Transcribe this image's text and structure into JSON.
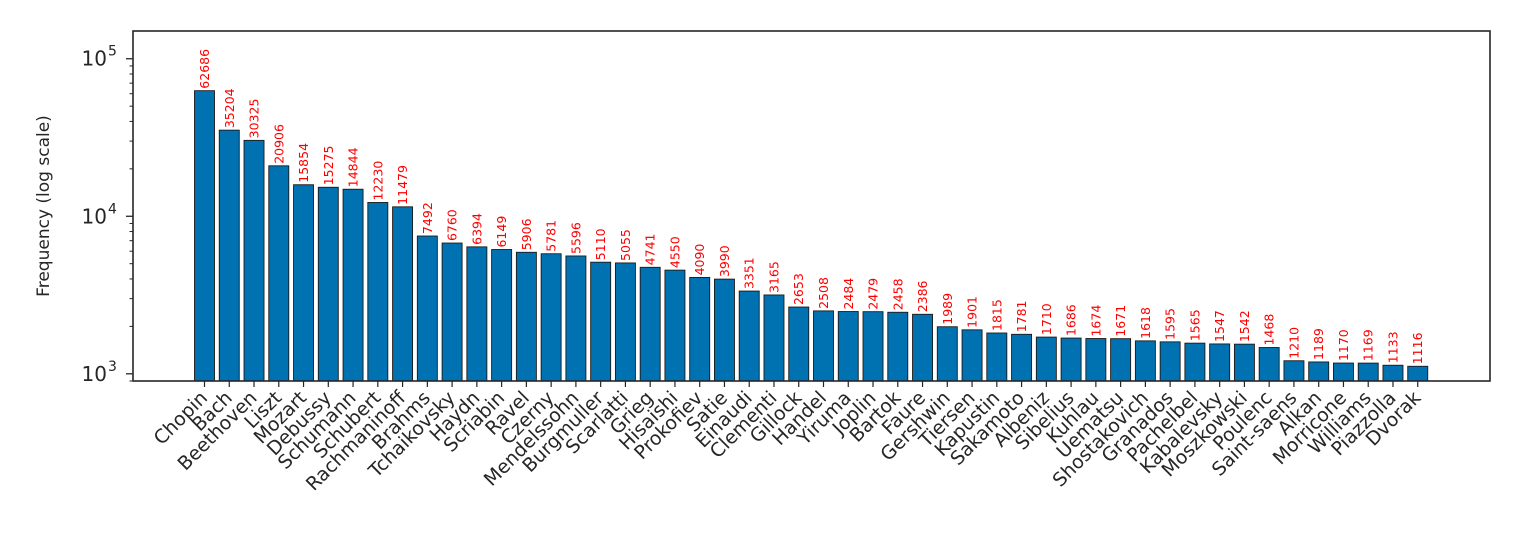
{
  "chart_data": {
    "type": "bar",
    "ylabel": "Frequency (log scale)",
    "yscale": "log",
    "ylim": [
      900,
      150000
    ],
    "yticks": [
      {
        "value": 1000,
        "base": "10",
        "exp": "3"
      },
      {
        "value": 10000,
        "base": "10",
        "exp": "4"
      },
      {
        "value": 100000,
        "base": "10",
        "exp": "5"
      }
    ],
    "bar_color": "#0072b2",
    "value_label_color": "#ff0000",
    "categories": [
      "Chopin",
      "Bach",
      "Beethoven",
      "Liszt",
      "Mozart",
      "Debussy",
      "Schumann",
      "Schubert",
      "Rachmaninoff",
      "Brahms",
      "Tchaikovsky",
      "Haydn",
      "Scriabin",
      "Ravel",
      "Czerny",
      "Mendelssohn",
      "Burgmuller",
      "Scarlatti",
      "Grieg",
      "Hisaishi",
      "Prokofiev",
      "Satie",
      "Einaudi",
      "Clementi",
      "Gillock",
      "Handel",
      "Yiruma",
      "Joplin",
      "Bartok",
      "Faure",
      "Gershwin",
      "Tiersen",
      "Kapustin",
      "Sakamoto",
      "Albeniz",
      "Sibelius",
      "Kuhlau",
      "Uematsu",
      "Shostakovich",
      "Granados",
      "Pachelbel",
      "Kabalevsky",
      "Moszkowski",
      "Poulenc",
      "Saint-saens",
      "Alkan",
      "Morricone",
      "Williams",
      "Piazzolla",
      "Dvorak"
    ],
    "values": [
      62686,
      35204,
      30325,
      20906,
      15854,
      15275,
      14844,
      12230,
      11479,
      7492,
      6760,
      6394,
      6149,
      5906,
      5781,
      5596,
      5110,
      5055,
      4741,
      4550,
      4090,
      3990,
      3351,
      3165,
      2653,
      2508,
      2484,
      2479,
      2458,
      2386,
      1989,
      1901,
      1815,
      1781,
      1710,
      1686,
      1674,
      1671,
      1618,
      1595,
      1565,
      1547,
      1542,
      1468,
      1210,
      1189,
      1170,
      1169,
      1133,
      1116
    ]
  }
}
